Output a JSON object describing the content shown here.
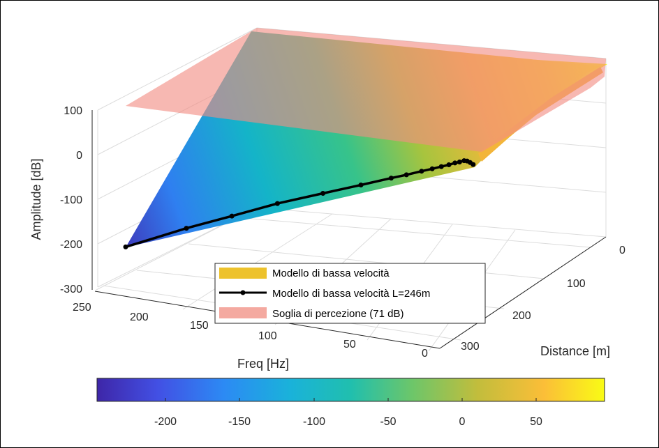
{
  "chart_data": {
    "type": "surface",
    "xlabel": "Freq [Hz]",
    "ylabel": "Distance [m]",
    "zlabel": "Amplitude [dB]",
    "x_ticks": [
      "0",
      "50",
      "100",
      "150",
      "200",
      "250"
    ],
    "y_ticks": [
      "0",
      "100",
      "200",
      "300"
    ],
    "z_ticks": [
      "100",
      "0",
      "-100",
      "-200",
      "-300"
    ],
    "xlim": [
      0,
      250
    ],
    "ylim": [
      0,
      330
    ],
    "zlim": [
      -300,
      100
    ],
    "grid": true,
    "colormap": "parula",
    "colorbar": {
      "ticks": [
        "-200",
        "-150",
        "-100",
        "-50",
        "0",
        "50"
      ],
      "range": [
        -245,
        95
      ]
    },
    "threshold_db": 71,
    "line_distance_m": 246,
    "line_series": {
      "name": "Modello di bassa velocità L=246m",
      "freq_hz": [
        230,
        190,
        160,
        130,
        100,
        75,
        55,
        45,
        35,
        28,
        22,
        17,
        13,
        10,
        7,
        5,
        3,
        1
      ],
      "amplitude_db": [
        -207,
        -165,
        -138,
        -110,
        -88,
        -70,
        -55,
        -48,
        -40,
        -35,
        -30,
        -26,
        -22,
        -20,
        -17,
        -18,
        -22,
        -27
      ]
    },
    "legend": [
      {
        "label": "Modello di bassa velocità",
        "color": "#EDC22C",
        "kind": "patch"
      },
      {
        "label": "Modello di bassa velocità L=246m",
        "color": "#000000",
        "kind": "line-marker"
      },
      {
        "label": "Soglia di percezione (71 dB)",
        "color": "#F4A9A0",
        "kind": "patch"
      }
    ],
    "legend_position": "inside-bottom"
  }
}
